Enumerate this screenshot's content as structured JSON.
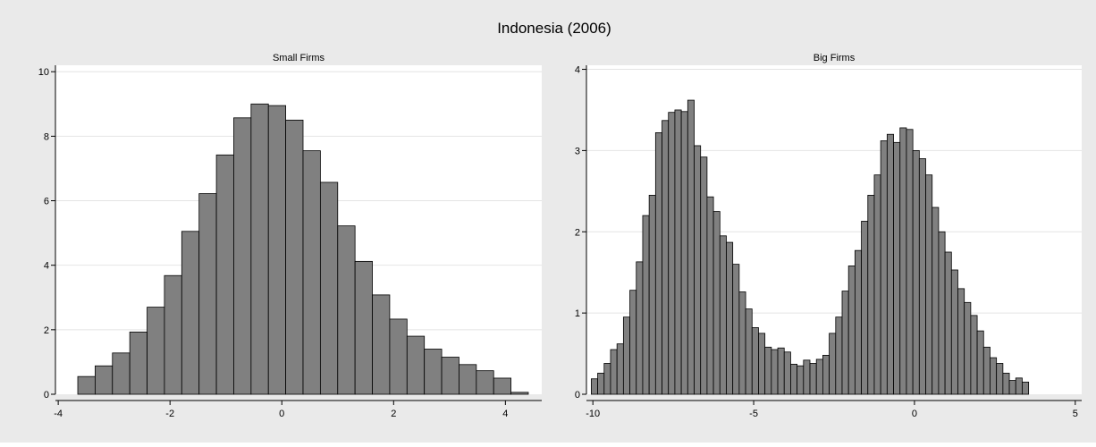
{
  "figure": {
    "title": "Indonesia (2006)"
  },
  "colors": {
    "background": "#eaeaea",
    "plot_area": "#ffffff",
    "bar_fill": "#808080",
    "bar_stroke": "#000000",
    "grid": "#e4e4e4"
  },
  "chart_data": [
    {
      "type": "bar",
      "title": "Small Firms",
      "xlabel": "",
      "ylabel": "",
      "xlim": [
        -4,
        4.6
      ],
      "ylim": [
        0,
        10
      ],
      "xticks": [
        -4,
        -2,
        0,
        2,
        4
      ],
      "yticks": [
        0,
        2,
        4,
        6,
        8,
        10
      ],
      "grid": true,
      "bin_width": 0.31,
      "bins_start": [
        -3.65,
        -3.34,
        -3.03,
        -2.72,
        -2.41,
        -2.1,
        -1.79,
        -1.48,
        -1.17,
        -0.86,
        -0.55,
        -0.24,
        0.07,
        0.38,
        0.69,
        1.0,
        1.31,
        1.62,
        1.93,
        2.24,
        2.55,
        2.86,
        3.17,
        3.48,
        3.79,
        4.1,
        4.41
      ],
      "values": [
        0.55,
        0.88,
        1.28,
        1.93,
        2.7,
        3.68,
        5.05,
        6.22,
        7.42,
        8.57,
        9.0,
        8.95,
        8.5,
        7.55,
        6.57,
        5.22,
        4.12,
        3.08,
        2.33,
        1.8,
        1.4,
        1.15,
        0.92,
        0.73,
        0.5,
        0.06
      ]
    },
    {
      "type": "bar",
      "title": "Big Firms",
      "xlabel": "",
      "ylabel": "",
      "xlim": [
        -10,
        5
      ],
      "ylim": [
        0,
        4
      ],
      "xticks": [
        -10,
        -5,
        0,
        5
      ],
      "yticks": [
        0,
        1,
        2,
        3,
        4
      ],
      "grid": true,
      "bin_width": 0.2,
      "bins_start": -10.05,
      "values": [
        0.19,
        0.26,
        0.38,
        0.55,
        0.62,
        0.95,
        1.28,
        1.63,
        2.2,
        2.45,
        3.22,
        3.37,
        3.47,
        3.5,
        3.48,
        3.62,
        3.06,
        2.92,
        2.43,
        2.25,
        1.95,
        1.87,
        1.6,
        1.26,
        1.05,
        0.82,
        0.75,
        0.58,
        0.55,
        0.57,
        0.52,
        0.37,
        0.35,
        0.42,
        0.38,
        0.43,
        0.48,
        0.75,
        0.95,
        1.27,
        1.58,
        1.77,
        2.13,
        2.45,
        2.7,
        3.12,
        3.2,
        3.1,
        3.28,
        3.26,
        3.0,
        2.9,
        2.7,
        2.3,
        2.0,
        1.75,
        1.53,
        1.3,
        1.13,
        0.97,
        0.78,
        0.58,
        0.45,
        0.38,
        0.26,
        0.17,
        0.2,
        0.15
      ]
    }
  ]
}
